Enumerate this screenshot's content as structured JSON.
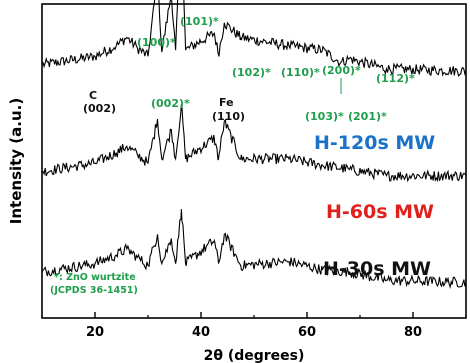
{
  "chart_data": {
    "type": "line",
    "xlabel": "2θ (degrees)",
    "ylabel": "Intensity (a.u.)",
    "xlim": [
      10,
      90
    ],
    "ylim": [
      0,
      15
    ],
    "y_ticks_shown": false,
    "grid": false,
    "x_ticks": [
      20,
      40,
      60,
      80
    ],
    "x_tick_labels": [
      "20",
      "40",
      "60",
      "80"
    ],
    "series": [
      {
        "name": "H-120s MW",
        "color": "#1a73c9",
        "offset": 10,
        "points": [
          [
            10,
            2.1
          ],
          [
            20,
            2.5
          ],
          [
            24,
            3.0
          ],
          [
            26,
            3.4
          ],
          [
            28,
            2.9
          ],
          [
            30,
            2.5
          ],
          [
            31.8,
            6.3
          ],
          [
            32.6,
            2.7
          ],
          [
            34.4,
            5.5
          ],
          [
            35.2,
            2.8
          ],
          [
            36.3,
            9.0
          ],
          [
            37.1,
            2.8
          ],
          [
            42.5,
            3.6
          ],
          [
            43.3,
            2.6
          ],
          [
            44.4,
            4.1
          ],
          [
            47.5,
            3.4
          ],
          [
            56.6,
            3.0
          ],
          [
            62.9,
            2.8
          ],
          [
            66.4,
            2.2
          ],
          [
            68.0,
            2.4
          ],
          [
            69.1,
            2.3
          ],
          [
            75,
            1.9
          ],
          [
            90,
            1.8
          ]
        ]
      },
      {
        "name": "H-60s MW",
        "color": "#e0201c",
        "offset": 5,
        "points": [
          [
            10,
            2.0
          ],
          [
            20,
            2.4
          ],
          [
            24,
            2.9
          ],
          [
            26,
            3.2
          ],
          [
            28,
            2.8
          ],
          [
            30,
            2.4
          ],
          [
            31.8,
            4.5
          ],
          [
            32.6,
            2.6
          ],
          [
            34.4,
            4.0
          ],
          [
            35.2,
            2.6
          ],
          [
            36.3,
            5.2
          ],
          [
            37.1,
            2.6
          ],
          [
            42.5,
            3.6
          ],
          [
            43.3,
            2.6
          ],
          [
            44.4,
            4.4
          ],
          [
            47.5,
            2.6
          ],
          [
            56.6,
            2.6
          ],
          [
            62.9,
            2.3
          ],
          [
            68.0,
            2.1
          ],
          [
            75,
            1.8
          ],
          [
            90,
            1.8
          ]
        ]
      },
      {
        "name": "H-30s MW",
        "color": "#111111",
        "offset": 0,
        "points": [
          [
            10,
            2.2
          ],
          [
            20,
            2.6
          ],
          [
            24,
            3.0
          ],
          [
            26,
            3.3
          ],
          [
            28,
            2.9
          ],
          [
            30,
            2.5
          ],
          [
            31.8,
            4.0
          ],
          [
            32.6,
            2.6
          ],
          [
            34.4,
            3.8
          ],
          [
            35.2,
            2.6
          ],
          [
            36.3,
            5.2
          ],
          [
            37.1,
            2.6
          ],
          [
            42.5,
            3.7
          ],
          [
            43.3,
            2.6
          ],
          [
            44.4,
            4.0
          ],
          [
            47.5,
            2.5
          ],
          [
            56.6,
            2.7
          ],
          [
            62.9,
            2.3
          ],
          [
            68.0,
            2.2
          ],
          [
            75,
            1.8
          ],
          [
            90,
            1.7
          ]
        ]
      }
    ],
    "peak_labels": [
      {
        "text": "(100)*",
        "color": "#1e9e4c",
        "x": 31.8
      },
      {
        "text": "(101)*",
        "color": "#1e9e4c",
        "x": 36.3
      },
      {
        "text": "(002)*",
        "color": "#1e9e4c",
        "x": 34.4
      },
      {
        "text": "(102)*",
        "color": "#1e9e4c",
        "x": 47.5
      },
      {
        "text": "(110)*",
        "color": "#1e9e4c",
        "x": 56.6
      },
      {
        "text": "(200)*",
        "color": "#1e9e4c",
        "x": 66.4
      },
      {
        "text": "(112)*",
        "color": "#1e9e4c",
        "x": 68.0
      },
      {
        "text": "(103)*",
        "color": "#1e9e4c",
        "x": 62.9
      },
      {
        "text": "(201)*",
        "color": "#1e9e4c",
        "x": 69.1
      },
      {
        "text": "C",
        "color": "#111111",
        "x": 26
      },
      {
        "text": "(002)",
        "color": "#111111",
        "x": 26
      },
      {
        "text": "Fe",
        "color": "#111111",
        "x": 44.4
      },
      {
        "text": "(110)",
        "color": "#111111",
        "x": 44.4
      }
    ],
    "series_labels": [
      {
        "text": "H-120s MW",
        "color": "#1a73c9"
      },
      {
        "text": "H-60s MW",
        "color": "#e0201c"
      },
      {
        "text": "H-30s MW",
        "color": "#111111"
      }
    ],
    "footnote": [
      "*: ZnO wurtzite",
      "(JCPDS 36-1451)"
    ],
    "footnote_color": "#1e9e4c"
  }
}
